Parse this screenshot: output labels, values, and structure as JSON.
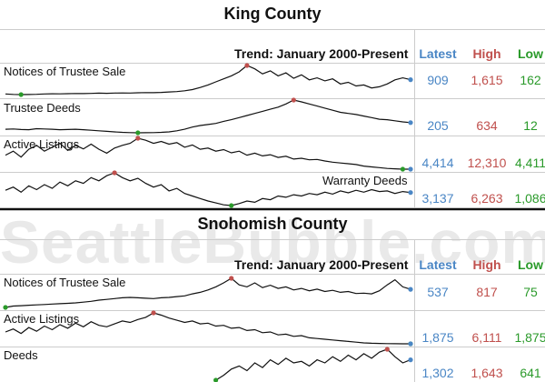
{
  "watermark": "SeattleBubble.com",
  "colors": {
    "latest": "#4a86c5",
    "high": "#c0504d",
    "low": "#2a9a2a"
  },
  "panels": [
    {
      "title": "King County",
      "trend_label": "Trend: January 2000-Present",
      "headers": {
        "latest": "Latest",
        "high": "High",
        "low": "Low"
      }
    },
    {
      "title": "Snohomish County",
      "trend_label": "Trend: January 2000-Present",
      "headers": {
        "latest": "Latest",
        "high": "High",
        "low": "Low"
      }
    }
  ],
  "chart_data": [
    {
      "type": "line",
      "title": "King County",
      "subtitle": "Trend: January 2000-Present",
      "series": [
        {
          "name": "Notices of Trustee Sale",
          "latest": 909,
          "high": 1615,
          "low": 162,
          "values": [
            200,
            180,
            170,
            175,
            185,
            200,
            210,
            205,
            215,
            225,
            220,
            230,
            240,
            235,
            245,
            250,
            248,
            260,
            270,
            265,
            280,
            300,
            320,
            360,
            420,
            520,
            650,
            800,
            950,
            1100,
            1300,
            1615,
            1450,
            1200,
            1350,
            1100,
            1250,
            980,
            1150,
            900,
            1000,
            850,
            950,
            700,
            780,
            600,
            650,
            500,
            560,
            700,
            900,
            1000,
            909
          ]
        },
        {
          "name": "Trustee Deeds",
          "latest": 205,
          "high": 634,
          "low": 12,
          "values": [
            80,
            85,
            75,
            70,
            90,
            85,
            80,
            70,
            75,
            80,
            70,
            60,
            50,
            40,
            30,
            20,
            15,
            12,
            14,
            16,
            20,
            30,
            50,
            80,
            120,
            150,
            170,
            190,
            230,
            260,
            300,
            340,
            380,
            420,
            460,
            500,
            560,
            634,
            600,
            560,
            520,
            480,
            440,
            400,
            380,
            360,
            330,
            300,
            270,
            260,
            240,
            220,
            205
          ]
        },
        {
          "name": "Active Listings",
          "latest": 4414,
          "high": 12310,
          "low": 4411,
          "values": [
            8000,
            9000,
            7500,
            9500,
            10500,
            9000,
            10000,
            11000,
            9200,
            10500,
            9600,
            10800,
            9500,
            8500,
            9800,
            10500,
            11000,
            12310,
            11800,
            11000,
            11500,
            10800,
            11200,
            10000,
            10600,
            9500,
            9800,
            9000,
            9400,
            8600,
            9000,
            8000,
            8500,
            7800,
            8100,
            7400,
            7700,
            7000,
            7200,
            6800,
            6900,
            6500,
            6200,
            6000,
            5800,
            5600,
            5200,
            5000,
            4800,
            4600,
            4500,
            4411,
            4414
          ]
        },
        {
          "name": "Warranty Deeds",
          "latest": 3137,
          "high": 6263,
          "low": 1086,
          "values": [
            3500,
            4000,
            3200,
            4200,
            3600,
            4400,
            3800,
            4800,
            4200,
            5000,
            4600,
            5500,
            5000,
            5800,
            6263,
            5500,
            5000,
            5400,
            4600,
            4000,
            4400,
            3400,
            3800,
            3000,
            2600,
            2200,
            1800,
            1500,
            1200,
            1086,
            1400,
            1800,
            1600,
            2200,
            2000,
            2600,
            2400,
            2800,
            2600,
            3000,
            2800,
            3200,
            2900,
            3400,
            3100,
            3500,
            3200,
            3600,
            3300,
            3400,
            3000,
            3300,
            3137
          ]
        }
      ]
    },
    {
      "type": "line",
      "title": "Snohomish County",
      "subtitle": "Trend: January 2000-Present",
      "series": [
        {
          "name": "Notices of Trustee Sale",
          "latest": 537,
          "high": 817,
          "low": 75,
          "values": [
            75,
            110,
            120,
            130,
            140,
            150,
            160,
            170,
            180,
            190,
            210,
            230,
            260,
            280,
            300,
            320,
            330,
            320,
            310,
            300,
            320,
            330,
            350,
            370,
            420,
            460,
            520,
            600,
            700,
            817,
            650,
            600,
            700,
            580,
            640,
            560,
            600,
            520,
            560,
            500,
            540,
            480,
            510,
            460,
            480,
            430,
            440,
            420,
            500,
            650,
            780,
            600,
            537
          ]
        },
        {
          "name": "Active Listings",
          "latest": 1875,
          "high": 6111,
          "low": 1875,
          "values": [
            3500,
            3900,
            3300,
            4100,
            3600,
            4300,
            3800,
            4500,
            4000,
            4700,
            4200,
            4900,
            4400,
            4200,
            4600,
            5000,
            4800,
            5200,
            5500,
            6111,
            5800,
            5400,
            5100,
            4800,
            5000,
            4600,
            4700,
            4300,
            4400,
            4000,
            4100,
            3700,
            3800,
            3400,
            3500,
            3100,
            3200,
            2900,
            3000,
            2700,
            2600,
            2500,
            2400,
            2300,
            2200,
            2100,
            2000,
            1950,
            1920,
            1900,
            1890,
            1880,
            1875
          ]
        },
        {
          "name": "Deeds",
          "latest": 1302,
          "high": 1643,
          "low": 641,
          "values": [
            null,
            null,
            null,
            null,
            null,
            null,
            null,
            null,
            null,
            null,
            null,
            null,
            null,
            null,
            null,
            null,
            null,
            null,
            null,
            null,
            null,
            null,
            null,
            null,
            null,
            null,
            null,
            641,
            800,
            1000,
            1100,
            950,
            1200,
            1050,
            1300,
            1150,
            1350,
            1200,
            1250,
            1100,
            1300,
            1200,
            1400,
            1250,
            1450,
            1300,
            1500,
            1350,
            1550,
            1643,
            1400,
            1200,
            1302
          ]
        }
      ]
    }
  ]
}
